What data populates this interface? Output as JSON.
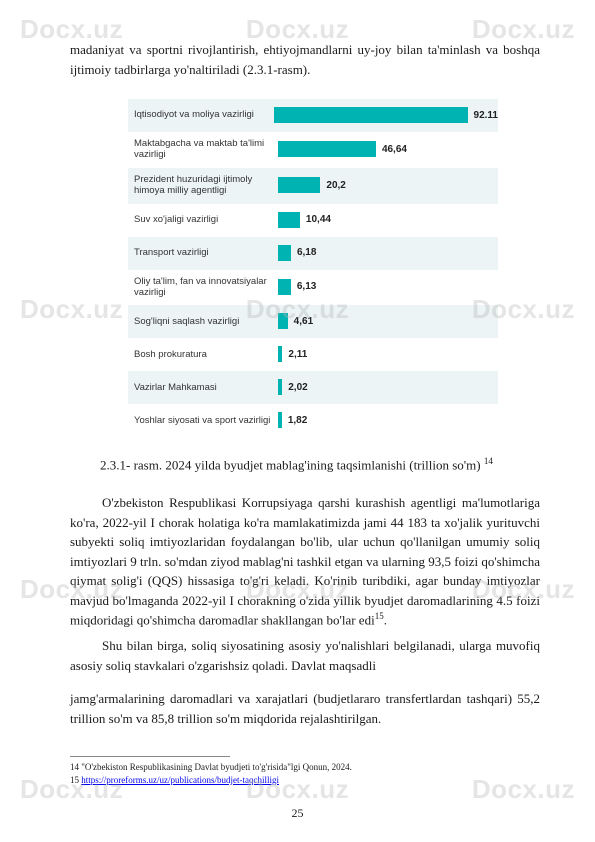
{
  "watermark": "Docx.uz",
  "para1": "madaniyat va sportni rivojlantirish, ehtiyojmandlarni uy-joy bilan ta'minlash va boshqa ijtimoiy tadbirlarga yo'naltiriladi (2.3.1-rasm).",
  "chart": {
    "type": "bar",
    "max_value": 100,
    "bar_color": "#00b3b3",
    "bg_odd": "#ecf4f5",
    "label_fontsize": 9.5,
    "value_fontsize": 10,
    "rows": [
      {
        "label": "Iqtisodiyot va moliya vazirligi",
        "value": 92.11,
        "display": "92.11"
      },
      {
        "label": "Maktabgacha va maktab ta'limi vazirligi",
        "value": 46.64,
        "display": "46,64"
      },
      {
        "label": "Prezident huzuridagi ijtimoly himoya milliy agentligi",
        "value": 20.2,
        "display": "20,2"
      },
      {
        "label": "Suv xo'jaligi vazirligi",
        "value": 10.44,
        "display": "10,44"
      },
      {
        "label": "Transport vazirligi",
        "value": 6.18,
        "display": "6,18"
      },
      {
        "label": "Oliy ta'lim, fan va innovatsiyalar vazirligi",
        "value": 6.13,
        "display": "6,13"
      },
      {
        "label": "Sog'liqni saqlash vazirligi",
        "value": 4.61,
        "display": "4,61"
      },
      {
        "label": "Bosh prokuratura",
        "value": 2.11,
        "display": "2,11"
      },
      {
        "label": "Vazirlar Mahkamasi",
        "value": 2.02,
        "display": "2,02"
      },
      {
        "label": "Yoshlar siyosati va sport vazirligi",
        "value": 1.82,
        "display": "1,82"
      }
    ]
  },
  "caption_text": "2.3.1- rasm. 2024 yilda byudjet mablag'ining taqsimlanishi (trillion so'm)",
  "caption_ref": "14",
  "para2": "O'zbekiston Respublikasi Korrupsiyaga qarshi kurashish agentligi ma'lumotlariga ko'ra, 2022-yil I chorak holatiga ko'ra mamlakatimizda jami 44 183 ta xo'jalik yurituvchi subyekti soliq imtiyozlaridan foydalangan bo'lib, ular uchun qo'llanilgan umumiy soliq imtiyozlari 9 trln. so'mdan ziyod mablag'ni tashkil etgan va ularning 93,5 foizi qo'shimcha qiymat solig'i (QQS) hissasiga to'g'ri keladi. Ko'rinib turibdiki, agar bunday imtiyozlar mavjud bo'lmaganda 2022-yil I chorakning o'zida yillik byudjet daromadlarining 4.5 foizi miqdoridagi qo'shimcha daromadlar shakllangan bo'lar edi",
  "para2_ref": "15",
  "para2_end": ".",
  "para3": "Shu bilan birga, soliq siyosatining asosiy yo'nalishlari belgilanadi, ularga muvofiq asosiy soliq stavkalari o'zgarishsiz qoladi. Davlat maqsadli",
  "para4": "jamg'armalarining daromadlari va xarajatlari (budjetlararo transfertlardan tashqari) 55,2 trillion so'm va 85,8 trillion so'm miqdorida rejalashtirilgan.",
  "footnotes": {
    "fn14": "14 \"O'zbekiston Respublikasining Davlat byudjeti to'g'risida\"lgi Qonun, 2024.",
    "fn15_num": "15 ",
    "fn15_link": "https://proreforms.uz/uz/publications/budjet-taqchilligi"
  },
  "page_number": "25"
}
